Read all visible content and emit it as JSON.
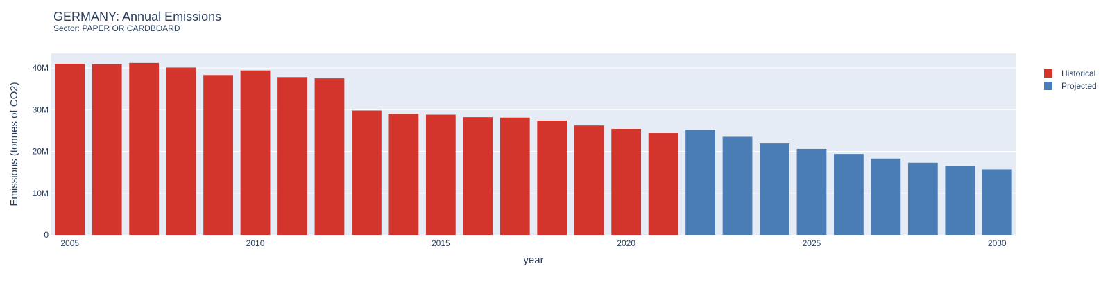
{
  "chart_data": {
    "type": "bar",
    "title": "GERMANY: Annual Emissions",
    "subtitle": "Sector: PAPER OR CARDBOARD",
    "xlabel": "year",
    "ylabel": "Emissions (tonnes of CO2)",
    "x_ticks": [
      "2005",
      "2010",
      "2015",
      "2020",
      "2025",
      "2030"
    ],
    "y_ticks": [
      {
        "value": 0,
        "label": "0"
      },
      {
        "value": 10000000,
        "label": "10M"
      },
      {
        "value": 20000000,
        "label": "20M"
      },
      {
        "value": 30000000,
        "label": "30M"
      },
      {
        "value": 40000000,
        "label": "40M"
      }
    ],
    "ylim": [
      0,
      43500000
    ],
    "xlim": [
      2004.5,
      2030.5
    ],
    "grid": true,
    "legend_position": "right",
    "series": [
      {
        "name": "Historical",
        "color": "#d3342b",
        "x": [
          2005,
          2006,
          2007,
          2008,
          2009,
          2010,
          2011,
          2012,
          2013,
          2014,
          2015,
          2016,
          2017,
          2018,
          2019,
          2020,
          2021
        ],
        "values": [
          41000000,
          40900000,
          41200000,
          40100000,
          38300000,
          39400000,
          37800000,
          37500000,
          29800000,
          29000000,
          28800000,
          28200000,
          28100000,
          27400000,
          26200000,
          25400000,
          24400000
        ]
      },
      {
        "name": "Projected",
        "color": "#4a7db5",
        "x": [
          2022,
          2023,
          2024,
          2025,
          2026,
          2027,
          2028,
          2029,
          2030
        ],
        "values": [
          25200000,
          23500000,
          21900000,
          20600000,
          19400000,
          18300000,
          17300000,
          16500000,
          15700000
        ]
      }
    ]
  }
}
